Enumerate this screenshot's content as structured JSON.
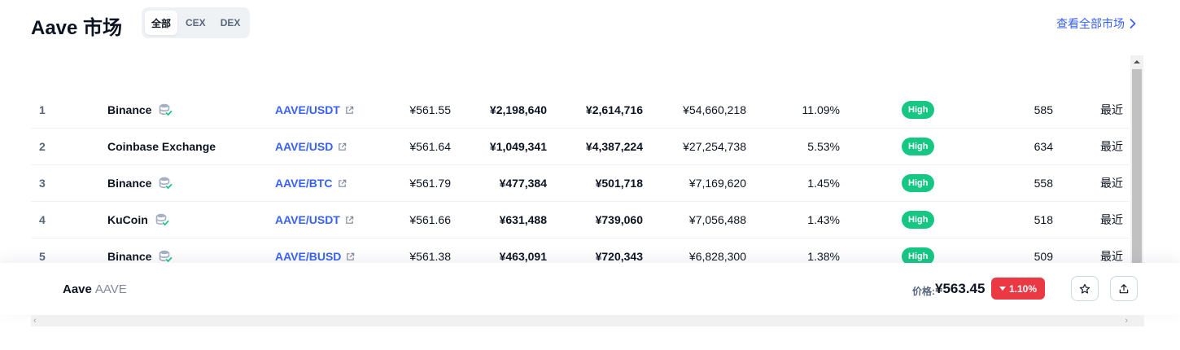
{
  "header": {
    "title": "Aave 市场",
    "tabs": [
      {
        "label": "全部",
        "active": true
      },
      {
        "label": "CEX",
        "active": false
      },
      {
        "label": "DEX",
        "active": false
      }
    ],
    "view_all_label": "查看全部市场"
  },
  "markets": [
    {
      "rank": "1",
      "exchange": "Binance",
      "verified_icon": true,
      "pair": "AAVE/USDT",
      "price": "¥561.55",
      "depth_plus2": "¥2,198,640",
      "depth_minus2": "¥2,614,716",
      "volume": "¥54,660,218",
      "volume_share": "11.09%",
      "confidence": "High",
      "liquidity": "585",
      "updated": "最近"
    },
    {
      "rank": "2",
      "exchange": "Coinbase Exchange",
      "verified_icon": false,
      "pair": "AAVE/USD",
      "price": "¥561.64",
      "depth_plus2": "¥1,049,341",
      "depth_minus2": "¥4,387,224",
      "volume": "¥27,254,738",
      "volume_share": "5.53%",
      "confidence": "High",
      "liquidity": "634",
      "updated": "最近"
    },
    {
      "rank": "3",
      "exchange": "Binance",
      "verified_icon": true,
      "pair": "AAVE/BTC",
      "price": "¥561.79",
      "depth_plus2": "¥477,384",
      "depth_minus2": "¥501,718",
      "volume": "¥7,169,620",
      "volume_share": "1.45%",
      "confidence": "High",
      "liquidity": "558",
      "updated": "最近"
    },
    {
      "rank": "4",
      "exchange": "KuCoin",
      "verified_icon": true,
      "pair": "AAVE/USDT",
      "price": "¥561.66",
      "depth_plus2": "¥631,488",
      "depth_minus2": "¥739,060",
      "volume": "¥7,056,488",
      "volume_share": "1.43%",
      "confidence": "High",
      "liquidity": "518",
      "updated": "最近"
    },
    {
      "rank": "5",
      "exchange": "Binance",
      "verified_icon": true,
      "pair": "AAVE/BUSD",
      "price": "¥561.38",
      "depth_plus2": "¥463,091",
      "depth_minus2": "¥720,343",
      "volume": "¥6,828,300",
      "volume_share": "1.38%",
      "confidence": "High",
      "liquidity": "509",
      "updated": "最近"
    }
  ],
  "bottom_bar": {
    "coin_name": "Aave",
    "coin_symbol": "AAVE",
    "price_label": "价格:",
    "price": "¥563.45",
    "change": "1.10%",
    "change_direction": "down"
  },
  "colors": {
    "accent": "#3861fb",
    "high_badge": "#16c784",
    "negative": "#ea3943"
  },
  "icons": {
    "verified_exchange": "database-check-icon",
    "external_link": "external-link-icon",
    "favorite": "star-icon",
    "share": "share-icon",
    "view_all": "chevron-right-icon"
  }
}
